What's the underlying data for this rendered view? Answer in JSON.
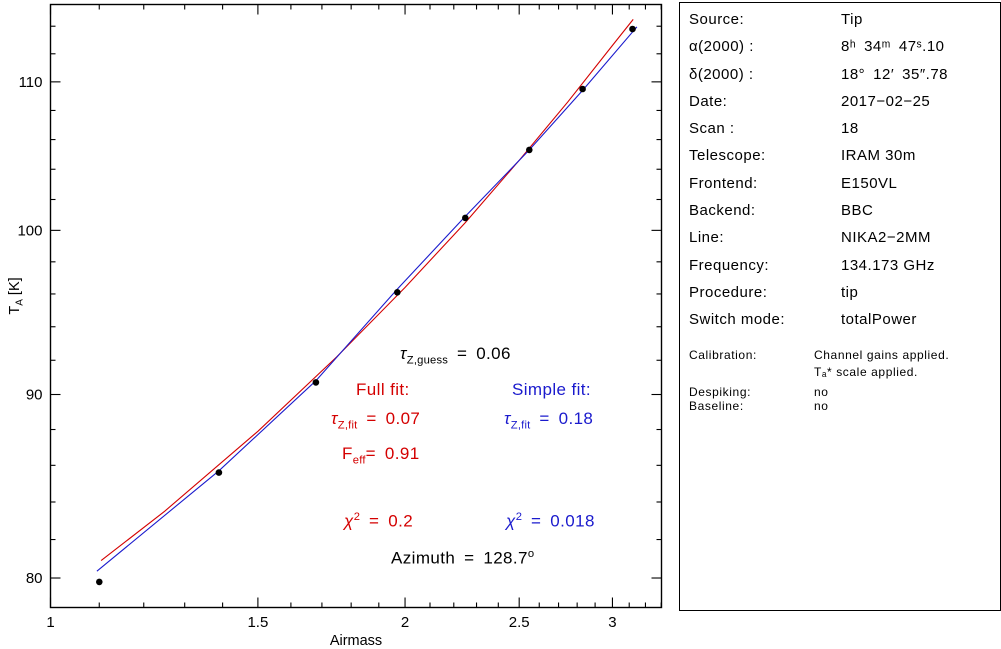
{
  "colors": {
    "red": "#d40000",
    "blue": "#1a1acd",
    "black": "#000000"
  },
  "chart_data": {
    "type": "scatter",
    "xlabel": "Airmass",
    "ylabel_parts": {
      "main": "T",
      "sub": "A",
      "rest": " [K]"
    },
    "x_axis": {
      "scale": "log",
      "min": 1.0,
      "max": 3.302,
      "grid": false,
      "major_ticks": [
        1,
        1.5,
        2,
        2.5,
        3
      ],
      "major_tick_labels": [
        "1",
        "1.5",
        "2",
        "2.5",
        "3"
      ],
      "minor_tick_step": 0.1
    },
    "y_axis": {
      "scale": "log",
      "min": 78.5,
      "max": 115.6,
      "grid": false,
      "major_ticks": [
        80,
        90,
        100,
        110
      ],
      "major_tick_labels": [
        "80",
        "90",
        "100",
        "110"
      ],
      "minor_tick_step": 2
    },
    "points": {
      "marker": "filled-circle",
      "color": "#000000",
      "data": [
        [
          1.1,
          79.8
        ],
        [
          1.39,
          85.6
        ],
        [
          1.68,
          90.7
        ],
        [
          1.97,
          96.1
        ],
        [
          2.25,
          100.8
        ],
        [
          2.55,
          105.3
        ],
        [
          2.83,
          109.5
        ],
        [
          3.12,
          113.8
        ]
      ]
    },
    "fits": [
      {
        "name": "full_fit",
        "color": "#d40000",
        "samples": [
          [
            1.104,
            80.9
          ],
          [
            1.25,
            83.5
          ],
          [
            1.5,
            87.9
          ],
          [
            1.75,
            92.2
          ],
          [
            2.0,
            96.4
          ],
          [
            2.25,
            100.5
          ],
          [
            2.5,
            104.6
          ],
          [
            2.75,
            108.6
          ],
          [
            3.0,
            112.6
          ],
          [
            3.124,
            114.5
          ]
        ]
      },
      {
        "name": "simple_fit",
        "color": "#1a1acd",
        "samples": [
          [
            1.095,
            80.35
          ],
          [
            1.39,
            85.7
          ],
          [
            1.68,
            90.8
          ],
          [
            1.97,
            96.3
          ],
          [
            2.25,
            100.9
          ],
          [
            2.55,
            105.3
          ],
          [
            2.83,
            109.4
          ],
          [
            3.147,
            113.95
          ]
        ]
      }
    ],
    "annotations": {
      "tau_guess": {
        "sym": "τ",
        "sub": "Z,guess",
        "rest": " = 0.06"
      },
      "full_header": {
        "text": "Full fit:"
      },
      "simple_header": {
        "text": "Simple fit:"
      },
      "tau_fit_red": {
        "sym": "τ",
        "sub": "Z,fit",
        "rest": " = 0.07"
      },
      "tau_fit_blue": {
        "sym": "τ",
        "sub": "Z,fit",
        "rest": " = 0.18"
      },
      "feff": {
        "sym": "F",
        "sub": "eff",
        "rest": "= 0.91"
      },
      "chi2_red": {
        "sym": "χ",
        "sup": "2",
        "rest": " = 0.2"
      },
      "chi2_blue": {
        "sym": "χ",
        "sup": "2",
        "rest": " = 0.018"
      },
      "azimuth": {
        "text": "Azimuth = 128.7",
        "sup": "o"
      }
    }
  },
  "panel": {
    "rows": [
      {
        "label": "Source:",
        "value": "Tip"
      },
      {
        "label": "α(2000) :",
        "value": "8ʰ 34ᵐ 47ˢ.10"
      },
      {
        "label": "δ(2000) :",
        "value": "18° 12′ 35″.78"
      },
      {
        "label": "Date:",
        "value": "2017−02−25"
      },
      {
        "label": "Scan :",
        "value": "18"
      },
      {
        "label": "Telescope:",
        "value": "IRAM 30m"
      },
      {
        "label": "Frontend:",
        "value": "E150VL"
      },
      {
        "label": "Backend:",
        "value": "BBC"
      },
      {
        "label": "Line:",
        "value": "NIKA2−2MM"
      },
      {
        "label": "Frequency:",
        "value": "134.173 GHz"
      },
      {
        "label": "Procedure:",
        "value": "tip"
      },
      {
        "label": "Switch mode:",
        "value": "totalPower"
      }
    ],
    "calibration_rows": [
      {
        "label": "Calibration:",
        "value": "Channel gains applied."
      },
      {
        "label": "",
        "value": "Tₐ* scale applied."
      },
      {
        "label": "Despiking:",
        "value": "no"
      },
      {
        "label": "Baseline:",
        "value": "no"
      }
    ]
  }
}
